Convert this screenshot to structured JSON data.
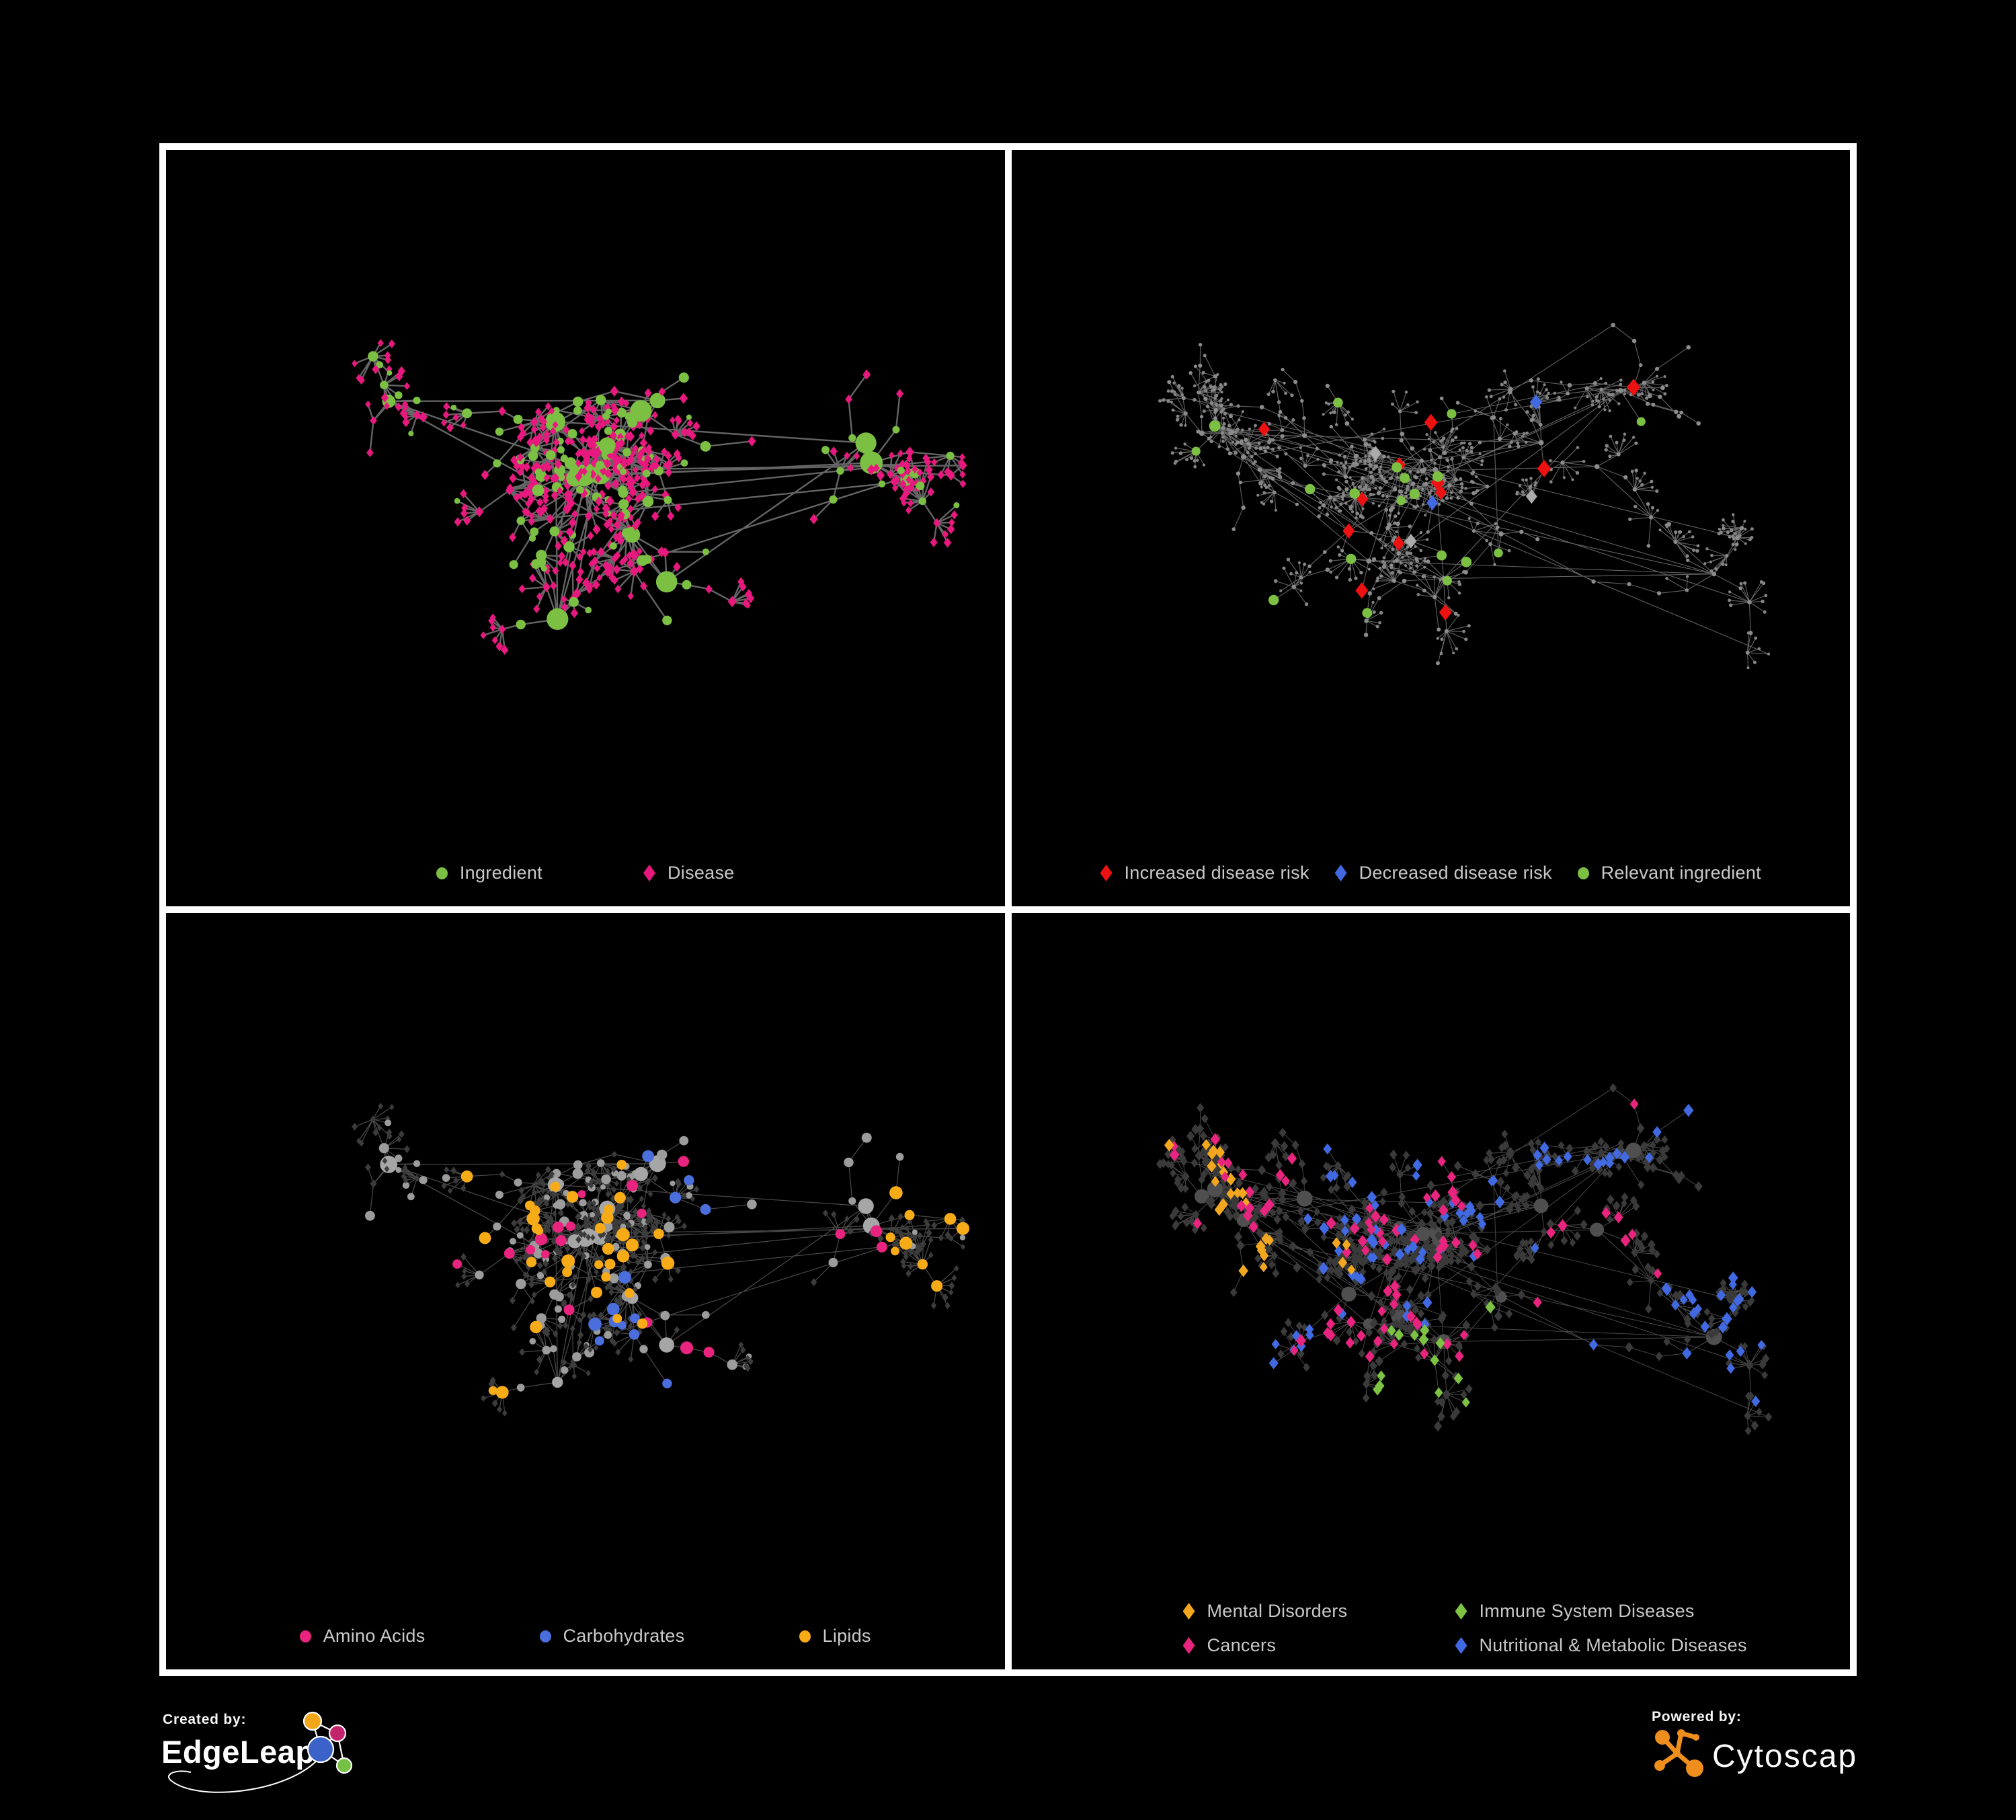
{
  "page": {
    "background": "#000000",
    "frame_color": "#ffffff",
    "panel_background": "#000000",
    "legend_text_color": "#c9c9c9"
  },
  "layouts": {
    "A": {
      "seed": 41,
      "clusters": 15,
      "bmin": 3,
      "bmax": 7,
      "stepsMax": 3,
      "stepMin": 26,
      "stepVar": 44,
      "fanProb": 0.42,
      "fanMax": 10,
      "leafMin": 14,
      "leafVar": 26,
      "links": 22,
      "midlinks": 36,
      "margin": 62
    },
    "B": {
      "seed": 97,
      "clusters": 19,
      "bmin": 3,
      "bmax": 7,
      "stepsMax": 4,
      "stepMin": 24,
      "stepVar": 40,
      "fanProb": 0.4,
      "fanMax": 12,
      "leafMin": 12,
      "leafVar": 24,
      "links": 26,
      "midlinks": 46,
      "margin": 56
    }
  },
  "panels": [
    {
      "id": "ingredient-disease",
      "layout": "A",
      "edge": {
        "color": "#6e6e6e",
        "width": 2.4,
        "opacity": 0.92
      },
      "styles": {
        "hub": [
          {
            "p": 1,
            "shape": "circle",
            "color": "#7cc043",
            "r": [
              9,
              17
            ],
            "top": true
          }
        ],
        "mid": [
          {
            "p": 0.4,
            "shape": "circle",
            "color": "#7cc043",
            "r": [
              5,
              9
            ],
            "top": true
          },
          {
            "p": 1,
            "shape": "diamond",
            "color": "#e8197e",
            "r": [
              6.5,
              8.5
            ],
            "top": true
          }
        ],
        "leaf": [
          {
            "p": 0.1,
            "shape": "circle",
            "color": "#7cc043",
            "r": [
              4,
              6
            ],
            "top": true
          },
          {
            "p": 1,
            "shape": "diamond",
            "color": "#e8197e",
            "r": [
              5.5,
              7.5
            ],
            "top": true
          }
        ]
      },
      "legend": [
        {
          "label": "Ingredient",
          "shape": "circle",
          "color": "#7cc043"
        },
        {
          "label": "Disease",
          "shape": "diamond",
          "color": "#e8197e"
        }
      ]
    },
    {
      "id": "disease-risk",
      "layout": "B",
      "edge": {
        "color": "#7a7a7a",
        "width": 1.1,
        "opacity": 0.8
      },
      "styles": {
        "hub": [
          {
            "p": 0.2,
            "shape": "diamond",
            "color": "#ee1111",
            "r": [
              11,
              13
            ],
            "top": true,
            "bias": 0.45,
            "sigma": 0.2
          },
          {
            "p": 0.12,
            "shape": "circle",
            "color": "#7cc043",
            "r": [
              7,
              9
            ],
            "top": true,
            "bias": 0.4,
            "sigma": 0.25
          },
          {
            "p": 1,
            "shape": "circle",
            "color": "#8c8c8c",
            "r": [
              3.2,
              4.2
            ]
          }
        ],
        "mid": [
          {
            "p": 0.06,
            "shape": "diamond",
            "color": "#ee1111",
            "r": [
              10.5,
              13
            ],
            "top": true,
            "bias": 0.45,
            "sigma": 0.22
          },
          {
            "p": 0.05,
            "shape": "circle",
            "color": "#7cc043",
            "r": [
              6.5,
              8
            ],
            "top": true,
            "bias": 0.42,
            "sigma": 0.26
          },
          {
            "p": 0.02,
            "shape": "diamond",
            "color": "#ababab",
            "r": [
              10,
              12
            ],
            "top": true,
            "bias": 0.45,
            "sigma": 0.2
          },
          {
            "p": 0.016,
            "shape": "diamond",
            "color": "#4169e1",
            "r": [
              10,
              12
            ],
            "top": true,
            "bias": 0.36,
            "sigma": 0.18
          },
          {
            "p": 0.008,
            "shape": "diamond",
            "color": "#4169e1",
            "r": [
              10,
              12
            ],
            "top": true,
            "bias": 0.85,
            "sigma": 0.12
          },
          {
            "p": 1,
            "shape": "circle",
            "color": "#8c8c8c",
            "r": [
              2.6,
              3.4
            ]
          }
        ],
        "leaf": [
          {
            "p": 1,
            "shape": "circle",
            "color": "#858585",
            "r": [
              2,
              2.8
            ]
          }
        ]
      },
      "legend": [
        {
          "label": "Increased disease risk",
          "shape": "diamond",
          "color": "#ee1111"
        },
        {
          "label": "Decreased disease risk",
          "shape": "diamond",
          "color": "#4169e1"
        },
        {
          "label": "Relevant ingredient",
          "shape": "circle",
          "color": "#7cc043"
        }
      ]
    },
    {
      "id": "nutrient-classes",
      "layout": "A",
      "edge": {
        "color": "#acacac",
        "width": 1.25,
        "opacity": 0.42
      },
      "flavors": [
        {
          "color": "#f7ab16",
          "bias": 0.42,
          "sigma": 0.25,
          "w": 2
        },
        {
          "color": "#e8247f",
          "bias": 0.85,
          "sigma": 0.3,
          "w": 0.9
        },
        {
          "color": "#e8247f",
          "bias": 0.12,
          "sigma": 0.18,
          "w": 0.5
        },
        {
          "color": "#4a6edb",
          "bias": 0.52,
          "sigma": 0.12,
          "w": 0.7
        }
      ],
      "styles": {
        "hub": [
          {
            "p": 1,
            "shape": "circle",
            "color": "#a6a6a6",
            "r": [
              8,
              13
            ]
          }
        ],
        "mid": [
          {
            "p": 0.3,
            "shape": "circle",
            "color": "@flavor",
            "r": [
              7,
              10
            ],
            "top": true
          },
          {
            "p": 0.38,
            "shape": "circle",
            "color": "#9c9c9c",
            "r": [
              5,
              8
            ]
          },
          {
            "p": 1,
            "shape": "diamond",
            "color": "#3c3c3c",
            "r": [
              5,
              6.5
            ]
          }
        ],
        "leaf": [
          {
            "p": 0.05,
            "shape": "circle",
            "color": "@flavor",
            "r": [
              6,
              8
            ],
            "top": true
          },
          {
            "p": 0.12,
            "shape": "circle",
            "color": "#9c9c9c",
            "r": [
              4,
              6
            ]
          },
          {
            "p": 1,
            "shape": "diamond",
            "color": "#3c3c3c",
            "r": [
              4.5,
              6
            ]
          }
        ]
      },
      "legend": [
        {
          "label": "Amino Acids",
          "shape": "circle",
          "color": "#e8247f"
        },
        {
          "label": "Carbohydrates",
          "shape": "circle",
          "color": "#4a6edb"
        },
        {
          "label": "Lipids",
          "shape": "circle",
          "color": "#f7ab16"
        }
      ]
    },
    {
      "id": "disease-classes",
      "layout": "B",
      "edge": {
        "color": "#909090",
        "width": 1,
        "opacity": 0.5
      },
      "flavors": [
        {
          "color": "#f2a71e",
          "bias": 0.16,
          "sigma": 0.14,
          "w": 1.2
        },
        {
          "color": "#e8247f",
          "bias": 0.48,
          "sigma": 0.16,
          "w": 1
        },
        {
          "color": "#4169e1",
          "bias": 0.78,
          "sigma": 0.22,
          "w": 1
        },
        {
          "color": "#7dc242",
          "bias": 0.5,
          "sigma": 0.5,
          "w": 0.12
        }
      ],
      "styles": {
        "hub": [
          {
            "p": 1,
            "shape": "circle",
            "color": "#4f4f4f",
            "r": [
              8,
              12
            ]
          }
        ],
        "mid": [
          {
            "p": 0.34,
            "shape": "diamond",
            "color": "@flavor",
            "r": [
              8,
              10
            ],
            "top": true
          },
          {
            "p": 1,
            "shape": "diamond",
            "color": "#3a3a3a",
            "r": [
              6.5,
              8
            ]
          }
        ],
        "leaf": [
          {
            "p": 0.22,
            "shape": "diamond",
            "color": "@flavor",
            "r": [
              7.5,
              9.5
            ],
            "top": true
          },
          {
            "p": 1,
            "shape": "diamond",
            "color": "#3a3a3a",
            "r": [
              6,
              7.5
            ]
          }
        ]
      },
      "legend": [
        {
          "label": "Mental Disorders",
          "shape": "diamond",
          "color": "#f2a71e"
        },
        {
          "label": "Immune System Diseases",
          "shape": "diamond",
          "color": "#7dc242"
        },
        {
          "label": "Cancers",
          "shape": "diamond",
          "color": "#e8247f"
        },
        {
          "label": "Nutritional & Metabolic Diseases",
          "shape": "diamond",
          "color": "#4169e1"
        }
      ]
    }
  ],
  "footer": {
    "created_by": "Created by:",
    "brand_name": "EdgeLeap",
    "powered_by": "Powered by:",
    "engine_name": "Cytoscape",
    "edgeleap_colors": {
      "orange": "#f2a71b",
      "magenta": "#c4246e",
      "blue": "#3a62c8",
      "green": "#76c045"
    },
    "cytoscape_orange": "#ef8e1c"
  }
}
